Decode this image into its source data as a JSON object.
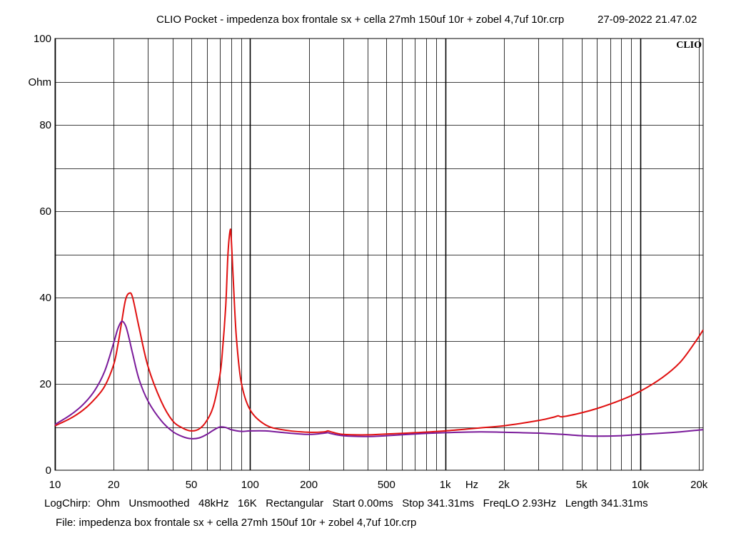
{
  "header": {
    "title": "CLIO Pocket - impedenza box frontale sx + cella 27mh 150uf 10r + zobel 4,7uf 10r.crp",
    "timestamp": "27-09-2022 21.47.02"
  },
  "brand": {
    "logo_text": "CLIO"
  },
  "settings_line": {
    "mode": "LogChirp:",
    "units": "Ohm",
    "smoothing": "Unsmoothed",
    "sample_rate": "48kHz",
    "fft_size": "16K",
    "window": "Rectangular",
    "start": "Start 0.00ms",
    "stop": "Stop 341.31ms",
    "freqlo": "FreqLO 2.93Hz",
    "length": "Length 341.31ms"
  },
  "file_line": "File: impedenza box frontale sx + cella 27mh 150uf 10r + zobel 4,7uf 10r.crp",
  "chart_data": {
    "type": "line",
    "x_scale": "log",
    "xlim": [
      10,
      21000
    ],
    "ylim": [
      0,
      100
    ],
    "ylabel": "Ohm",
    "xlabel": "Hz",
    "grid": true,
    "x_ticks": [
      {
        "value": 10,
        "label": "10"
      },
      {
        "value": 20,
        "label": "20"
      },
      {
        "value": 50,
        "label": "50"
      },
      {
        "value": 100,
        "label": "100"
      },
      {
        "value": 200,
        "label": "200"
      },
      {
        "value": 500,
        "label": "500"
      },
      {
        "value": 1000,
        "label": "1k"
      },
      {
        "value": 2000,
        "label": "2k"
      },
      {
        "value": 5000,
        "label": "5k"
      },
      {
        "value": 10000,
        "label": "10k"
      },
      {
        "value": 20000,
        "label": "20k"
      }
    ],
    "y_ticks": [
      0,
      20,
      40,
      60,
      80,
      100
    ],
    "colors": {
      "grid": "#000000",
      "series_1": "#e01010",
      "series_2": "#7a1a9a"
    },
    "series": [
      {
        "values_x": [
          10,
          12,
          14,
          16,
          18,
          20,
          21,
          22,
          23,
          24,
          25,
          27,
          30,
          35,
          40,
          45,
          50,
          55,
          60,
          65,
          70,
          72,
          75,
          77,
          79,
          80,
          82,
          85,
          90,
          100,
          120,
          150,
          200,
          240,
          250,
          260,
          300,
          400,
          500,
          700,
          1000,
          1500,
          2000,
          3000,
          3600,
          3800,
          4000,
          5000,
          6000,
          8000,
          10000,
          13000,
          16000,
          19000,
          21000
        ],
        "values_y": [
          10.3,
          12.0,
          14.0,
          16.5,
          19.5,
          24.5,
          29.0,
          34.5,
          39.5,
          41.0,
          40.0,
          33.0,
          24.0,
          16.0,
          11.5,
          9.8,
          9.1,
          9.6,
          11.5,
          15.0,
          22.0,
          27.0,
          38.0,
          50.0,
          55.5,
          54.0,
          44.0,
          31.0,
          20.5,
          14.0,
          10.5,
          9.3,
          8.8,
          8.9,
          9.1,
          8.9,
          8.3,
          8.2,
          8.4,
          8.7,
          9.1,
          9.8,
          10.3,
          11.5,
          12.3,
          12.6,
          12.4,
          13.3,
          14.3,
          16.3,
          18.3,
          21.5,
          25.0,
          29.5,
          32.5
        ]
      },
      {
        "values_x": [
          10,
          12,
          14,
          16,
          18,
          20,
          21,
          22,
          23,
          24,
          25,
          27,
          30,
          35,
          40,
          45,
          50,
          55,
          60,
          65,
          70,
          75,
          80,
          90,
          100,
          120,
          150,
          200,
          240,
          250,
          260,
          300,
          400,
          500,
          700,
          1000,
          1500,
          2000,
          3000,
          4000,
          5000,
          6000,
          8000,
          10000,
          13000,
          16000,
          19000,
          21000
        ],
        "values_y": [
          10.6,
          12.8,
          15.3,
          18.5,
          23.0,
          29.5,
          32.8,
          34.5,
          33.5,
          30.5,
          27.0,
          21.0,
          16.0,
          11.5,
          9.0,
          7.8,
          7.3,
          7.5,
          8.3,
          9.3,
          10.0,
          9.9,
          9.4,
          9.0,
          9.1,
          9.1,
          8.7,
          8.3,
          8.6,
          8.7,
          8.5,
          8.0,
          7.8,
          8.0,
          8.4,
          8.7,
          8.9,
          8.8,
          8.6,
          8.3,
          8.0,
          7.9,
          8.0,
          8.3,
          8.6,
          8.9,
          9.2,
          9.4
        ]
      }
    ]
  }
}
